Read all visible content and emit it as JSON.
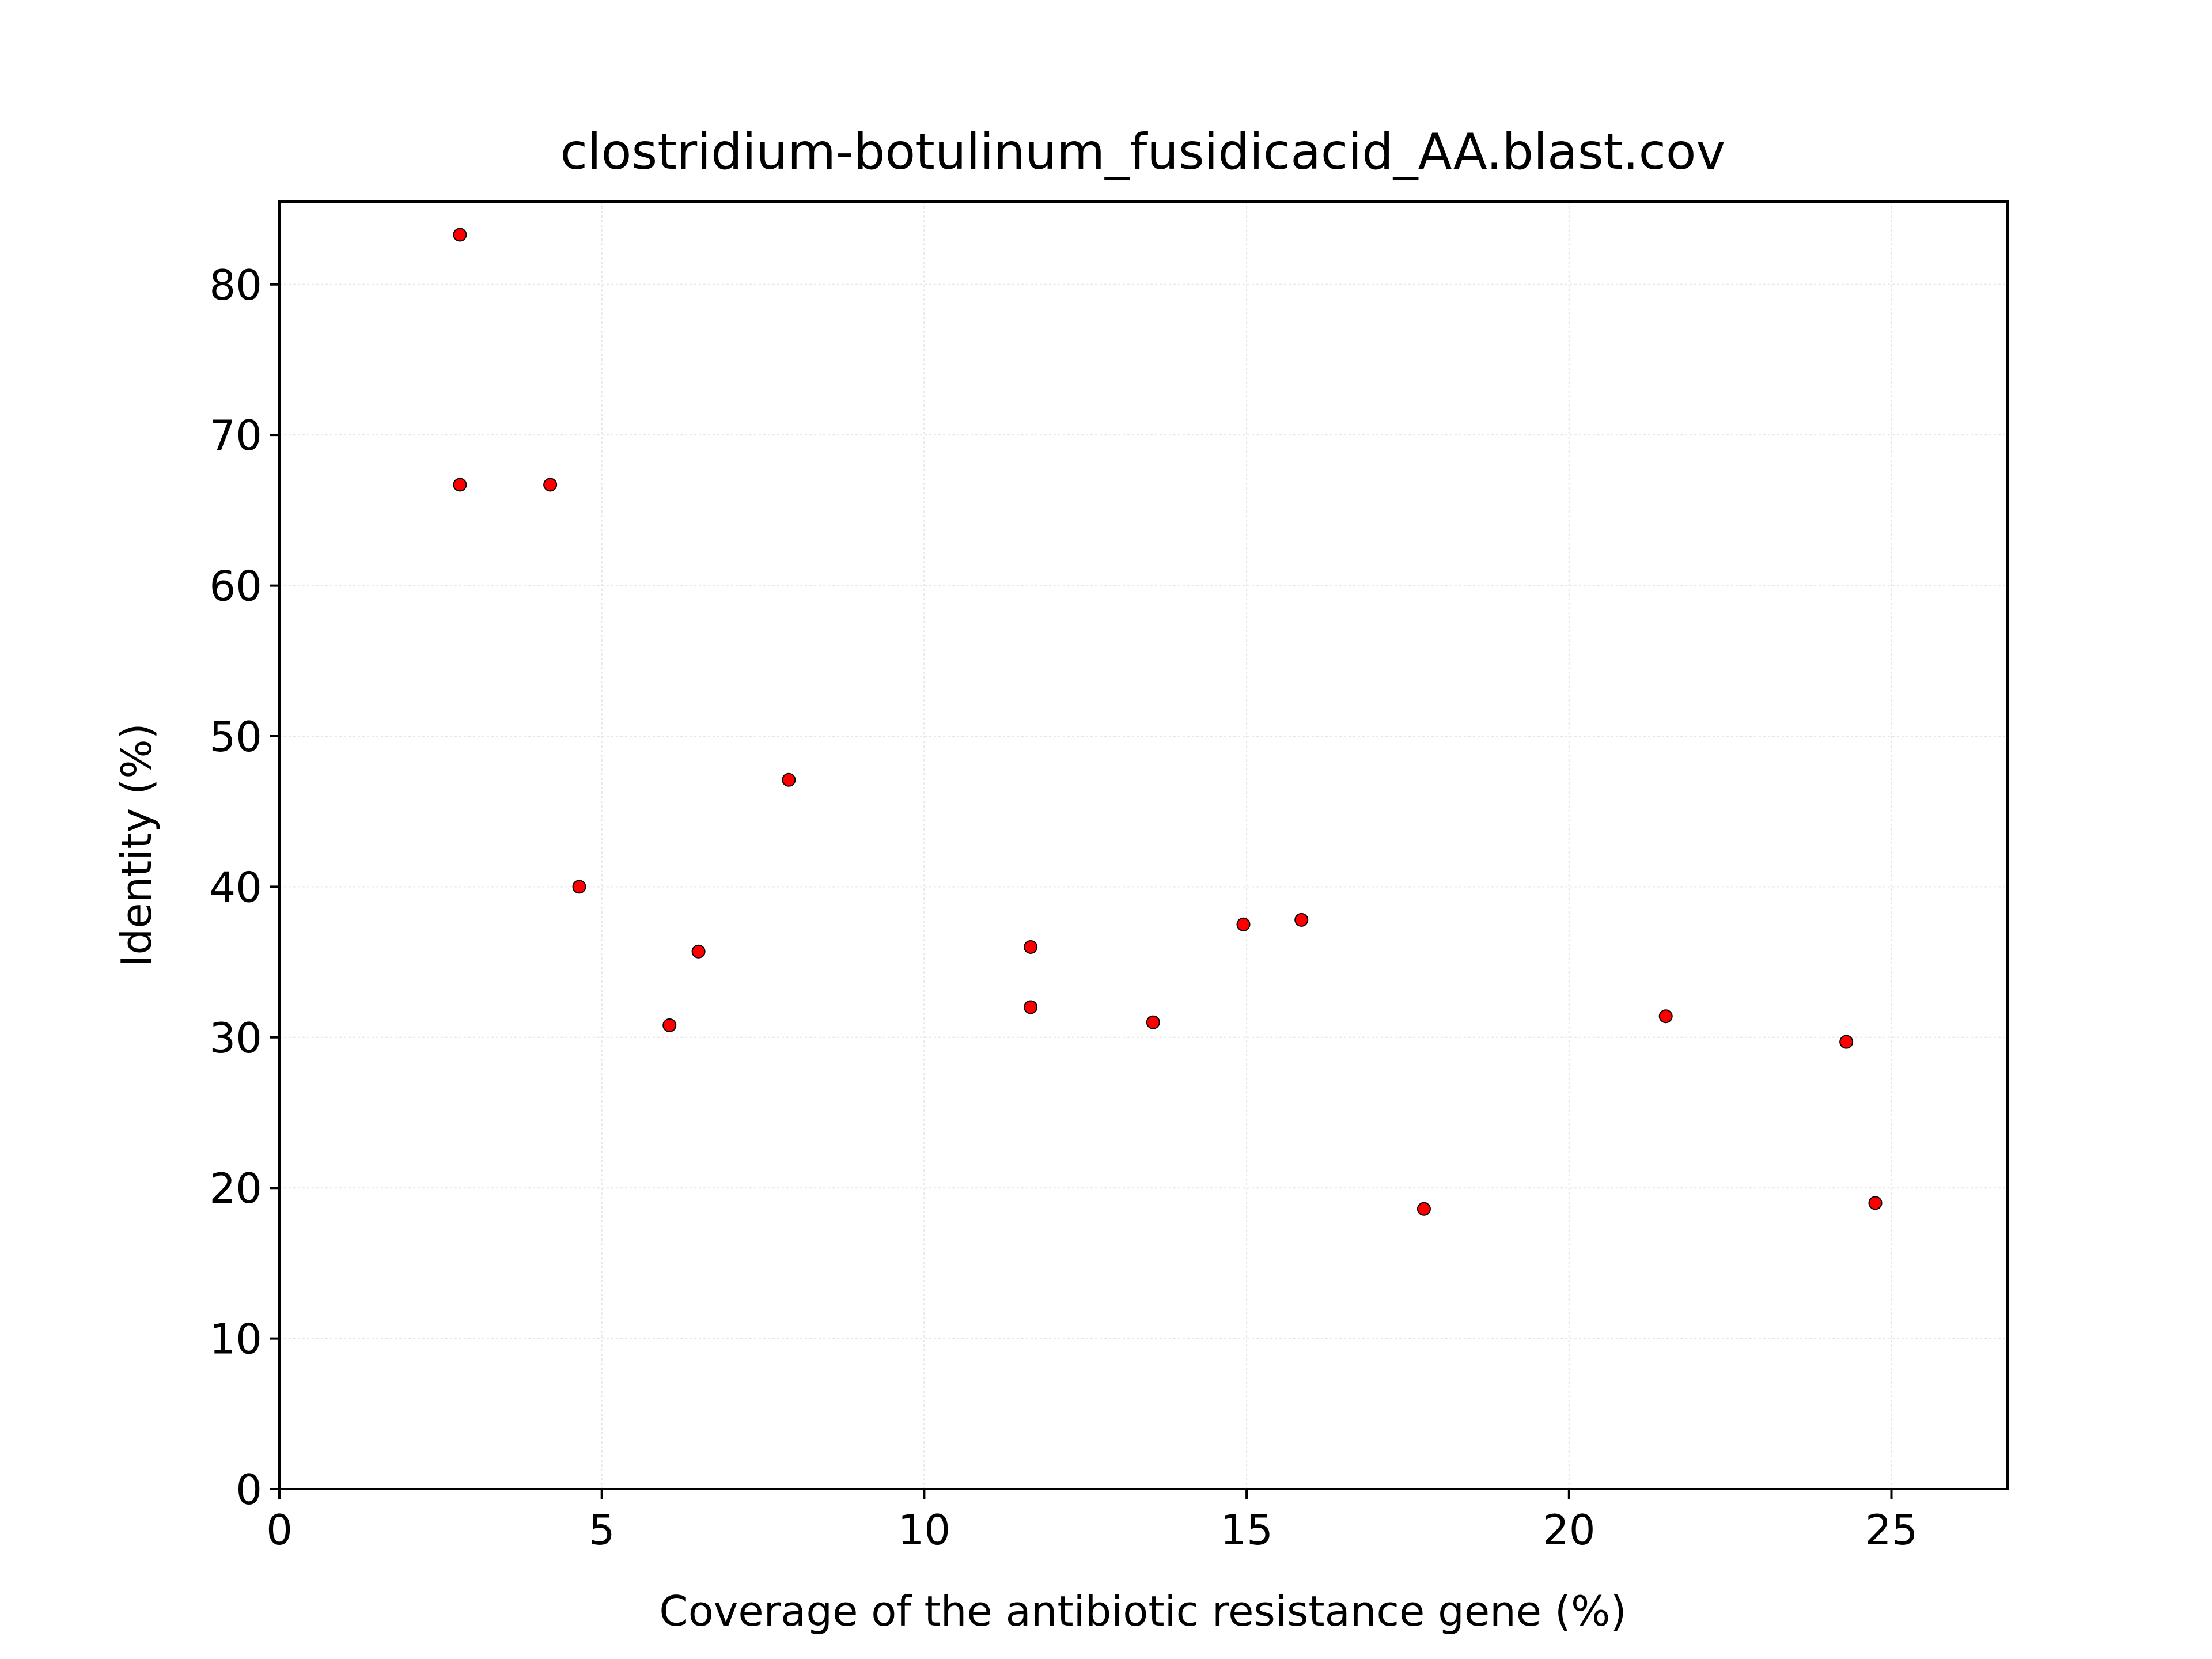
{
  "chart_data": {
    "type": "scatter",
    "title": "clostridium-botulinum_fusidicacid_AA.blast.cov",
    "xlabel": "Coverage of the antibiotic resistance gene (%)",
    "ylabel": "Identity (%)",
    "xlim": [
      0,
      26.8
    ],
    "ylim": [
      0,
      85.5
    ],
    "xticks": [
      0,
      5,
      10,
      15,
      20,
      25
    ],
    "yticks": [
      0,
      10,
      20,
      30,
      40,
      50,
      60,
      70,
      80
    ],
    "grid": true,
    "marker_color": "#ff0000",
    "marker_edge_color": "#000000",
    "points": [
      {
        "x": 2.8,
        "y": 83.3
      },
      {
        "x": 2.8,
        "y": 66.7
      },
      {
        "x": 4.2,
        "y": 66.7
      },
      {
        "x": 4.65,
        "y": 40.0
      },
      {
        "x": 6.05,
        "y": 30.8
      },
      {
        "x": 6.5,
        "y": 35.7
      },
      {
        "x": 7.9,
        "y": 47.1
      },
      {
        "x": 11.65,
        "y": 36.0
      },
      {
        "x": 11.65,
        "y": 32.0
      },
      {
        "x": 13.55,
        "y": 31.0
      },
      {
        "x": 14.95,
        "y": 37.5
      },
      {
        "x": 15.85,
        "y": 37.8
      },
      {
        "x": 17.75,
        "y": 18.6
      },
      {
        "x": 21.5,
        "y": 31.4
      },
      {
        "x": 24.3,
        "y": 29.7
      },
      {
        "x": 24.75,
        "y": 19.0
      }
    ]
  }
}
